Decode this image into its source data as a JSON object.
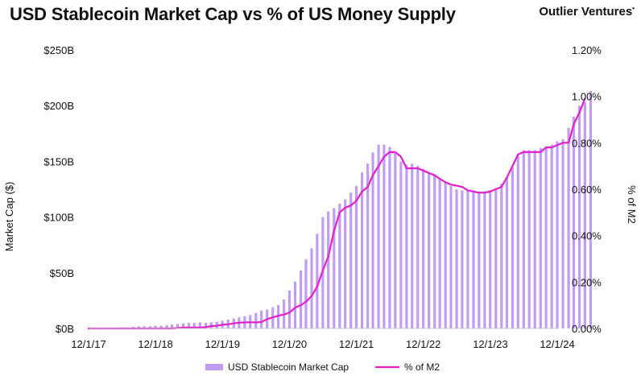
{
  "header": {
    "title": "USD Stablecoin Market Cap vs % of US Money Supply",
    "brand": "Outlier Ventures"
  },
  "chart_data": {
    "type": "bar",
    "title": "USD Stablecoin Market Cap vs % of US Money Supply",
    "ylabel": "Market Cap ($)",
    "y2label": "% of M2",
    "ylim": [
      0,
      250
    ],
    "y2lim": [
      0,
      1.2
    ],
    "y_ticks": [
      "$0B",
      "$50B",
      "$100B",
      "$150B",
      "$200B",
      "$250B"
    ],
    "y2_ticks": [
      "0.00%",
      "0.20%",
      "0.40%",
      "0.60%",
      "0.80%",
      "1.00%",
      "1.20%"
    ],
    "x_ticks": [
      "12/1/17",
      "12/1/18",
      "12/1/19",
      "12/1/20",
      "12/1/21",
      "12/1/22",
      "12/1/23",
      "12/1/24"
    ],
    "colors": {
      "bar": "#c39cf0",
      "line": "#e31fcf"
    },
    "legend_position": "bottom",
    "series": [
      {
        "name": "USD Stablecoin Market Cap",
        "kind": "bar",
        "x_start": "2018-05",
        "values": [
          0.5,
          1,
          1,
          1.5,
          2,
          2,
          2,
          2.5,
          2.5,
          3,
          3.5,
          4,
          4.5,
          5,
          5,
          5.5,
          5,
          5.5,
          6,
          7,
          8,
          9,
          10,
          11,
          12,
          14,
          16,
          17,
          19,
          21,
          26,
          34,
          42,
          52,
          62,
          72,
          85,
          100,
          105,
          108,
          112,
          116,
          122,
          128,
          140,
          148,
          158,
          165,
          165,
          163,
          158,
          150,
          147,
          148,
          146,
          143,
          140,
          138,
          134,
          131,
          128,
          125,
          124,
          124,
          123,
          123,
          123,
          124,
          126,
          130,
          135,
          145,
          155,
          160,
          160,
          160,
          162,
          163,
          165,
          168,
          170,
          180,
          190,
          200,
          203,
          213
        ]
      },
      {
        "name": "% of M2",
        "kind": "line",
        "x_start": "2017-12",
        "values": [
          0.0,
          0.0,
          0.0,
          0.0,
          0.0,
          0.0,
          0.0,
          0.0,
          0.0,
          0.0,
          0.0,
          0.0,
          0.0,
          0.0,
          0.0,
          0.0,
          0.002,
          0.004,
          0.004,
          0.004,
          0.004,
          0.006,
          0.01,
          0.012,
          0.016,
          0.018,
          0.022,
          0.025,
          0.026,
          0.027,
          0.026,
          0.028,
          0.04,
          0.048,
          0.055,
          0.06,
          0.068,
          0.09,
          0.1,
          0.115,
          0.14,
          0.18,
          0.25,
          0.31,
          0.42,
          0.5,
          0.52,
          0.53,
          0.55,
          0.59,
          0.61,
          0.66,
          0.7,
          0.74,
          0.76,
          0.76,
          0.74,
          0.69,
          0.69,
          0.69,
          0.68,
          0.67,
          0.66,
          0.645,
          0.63,
          0.62,
          0.615,
          0.61,
          0.595,
          0.59,
          0.585,
          0.585,
          0.59,
          0.6,
          0.61,
          0.65,
          0.7,
          0.75,
          0.76,
          0.76,
          0.76,
          0.76,
          0.78,
          0.78,
          0.79,
          0.8,
          0.8,
          0.88,
          0.93,
          0.99
        ]
      }
    ]
  }
}
